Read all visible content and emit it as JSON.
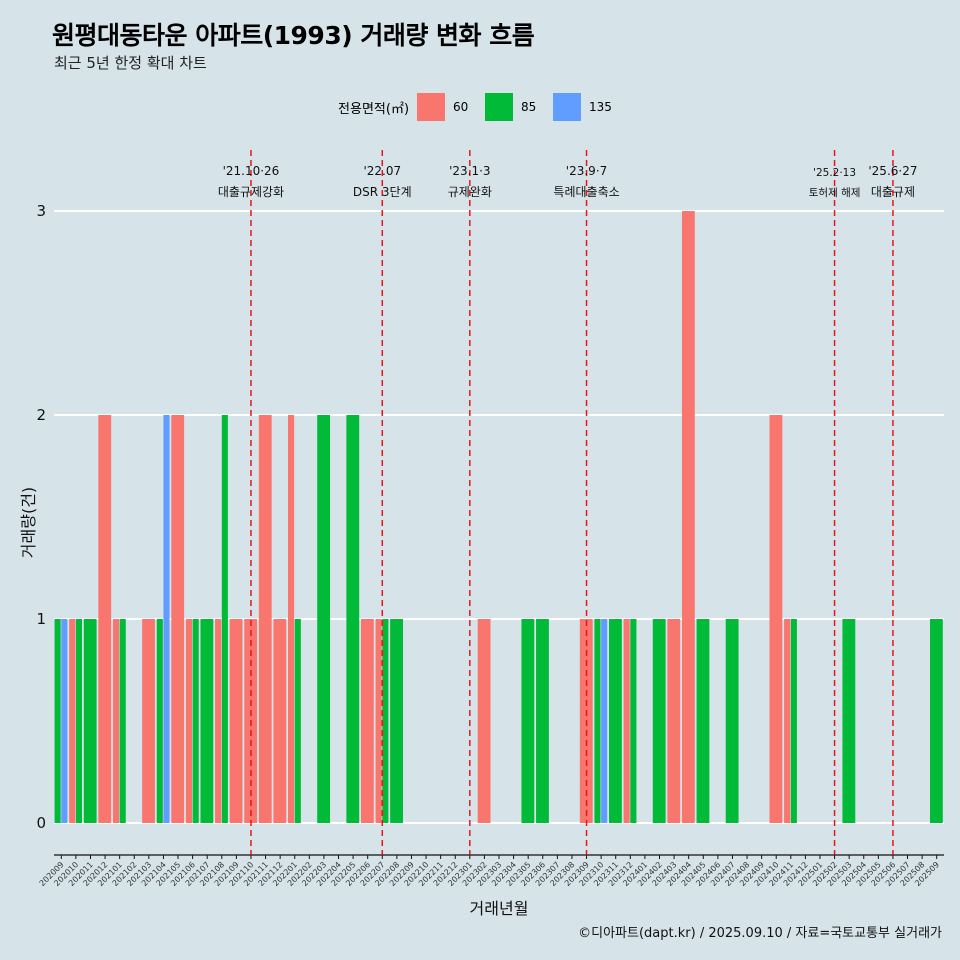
{
  "title": "원평대동타운 아파트(1993) 거래량 변화 흐름",
  "subtitle": "최근 5년 한정 확대 차트",
  "credit": "©디아파트(dapt.kr) / 2025.09.10 / 자료=국토교통부 실거래가",
  "chart_data": {
    "type": "bar",
    "xlabel": "거래년월",
    "ylabel": "거래량(건)",
    "ylim": [
      0,
      3
    ],
    "yticks": [
      0,
      1,
      2,
      3
    ],
    "legend": {
      "title": "전용면적(㎡)",
      "position": "top",
      "entries": [
        {
          "label": "60",
          "color": "#f8766d"
        },
        {
          "label": "85",
          "color": "#00ba38"
        },
        {
          "label": "135",
          "color": "#619cff"
        }
      ]
    },
    "categories": [
      "202009",
      "202010",
      "202011",
      "202012",
      "202101",
      "202102",
      "202103",
      "202104",
      "202105",
      "202106",
      "202107",
      "202108",
      "202109",
      "202110",
      "202111",
      "202112",
      "202201",
      "202202",
      "202203",
      "202204",
      "202205",
      "202206",
      "202207",
      "202208",
      "202209",
      "202210",
      "202211",
      "202212",
      "202301",
      "202302",
      "202303",
      "202304",
      "202305",
      "202306",
      "202307",
      "202308",
      "202309",
      "202310",
      "202311",
      "202312",
      "202401",
      "202402",
      "202403",
      "202404",
      "202405",
      "202406",
      "202407",
      "202408",
      "202409",
      "202410",
      "202411",
      "202412",
      "202501",
      "202502",
      "202503",
      "202504",
      "202505",
      "202506",
      "202507",
      "202508",
      "202509"
    ],
    "series": [
      {
        "name": "60",
        "color": "#f8766d",
        "values": [
          0,
          1,
          0,
          2,
          1,
          0,
          1,
          0,
          2,
          1,
          0,
          1,
          1,
          1,
          2,
          1,
          2,
          0,
          0,
          0,
          0,
          1,
          1,
          0,
          0,
          0,
          0,
          0,
          0,
          1,
          0,
          0,
          0,
          0,
          0,
          0,
          1,
          0,
          0,
          1,
          0,
          0,
          1,
          3,
          0,
          0,
          0,
          0,
          0,
          2,
          1,
          0,
          0,
          0,
          0,
          0,
          0,
          0,
          0,
          0,
          0
        ]
      },
      {
        "name": "85",
        "color": "#00ba38",
        "values": [
          1,
          1,
          1,
          0,
          1,
          0,
          0,
          1,
          0,
          1,
          1,
          2,
          0,
          0,
          0,
          0,
          1,
          0,
          2,
          0,
          2,
          0,
          1,
          1,
          0,
          0,
          0,
          0,
          0,
          0,
          0,
          0,
          1,
          1,
          0,
          0,
          0,
          1,
          1,
          1,
          0,
          1,
          0,
          0,
          1,
          0,
          1,
          0,
          0,
          0,
          1,
          0,
          0,
          0,
          1,
          0,
          0,
          0,
          0,
          0,
          1
        ]
      },
      {
        "name": "135",
        "color": "#619cff",
        "values": [
          1,
          0,
          0,
          0,
          0,
          0,
          0,
          2,
          0,
          0,
          0,
          0,
          0,
          0,
          0,
          0,
          0,
          0,
          0,
          0,
          0,
          0,
          0,
          0,
          0,
          0,
          0,
          0,
          0,
          0,
          0,
          0,
          0,
          0,
          0,
          0,
          0,
          1,
          0,
          0,
          0,
          0,
          0,
          0,
          0,
          0,
          0,
          0,
          0,
          0,
          0,
          0,
          0,
          0,
          0,
          0,
          0,
          0,
          0,
          0,
          0
        ]
      }
    ],
    "events": [
      {
        "date_label": "'21.10·26",
        "label": "대출규제강화",
        "month": "202110"
      },
      {
        "date_label": "'22.07",
        "label": "DSR 3단계",
        "month": "202207"
      },
      {
        "date_label": "'23.1·3",
        "label": "규제완화",
        "month": "202301"
      },
      {
        "date_label": "'23.9·7",
        "label": "특례대출축소",
        "month": "202309"
      },
      {
        "date_label": "'25.2·13",
        "label": "토허제 해제",
        "month": "202502"
      },
      {
        "date_label": "'25.6·27",
        "label": "대출규제",
        "month": "202506"
      }
    ],
    "event_line_color": "#e8161a",
    "grid": true
  }
}
